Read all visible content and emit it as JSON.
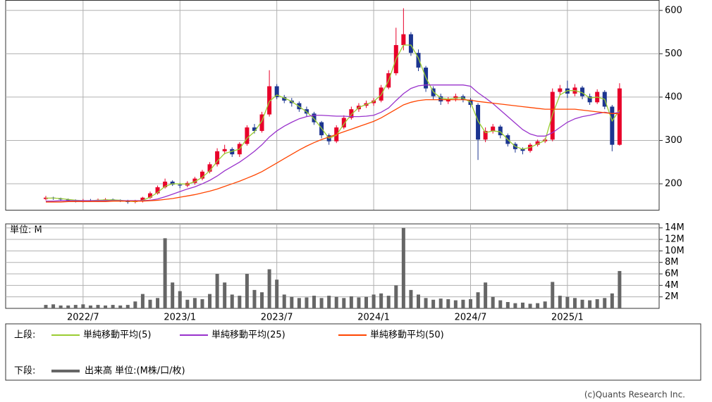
{
  "chart_data": [
    {
      "type": "candlestick",
      "categories": [
        null,
        null,
        null,
        null,
        null,
        "2022/7",
        null,
        null,
        null,
        null,
        null,
        null,
        null,
        null,
        null,
        null,
        null,
        null,
        "2023/1",
        null,
        null,
        null,
        null,
        null,
        null,
        null,
        null,
        null,
        null,
        null,
        null,
        "2023/7",
        null,
        null,
        null,
        null,
        null,
        null,
        null,
        null,
        null,
        null,
        null,
        null,
        "2024/1",
        null,
        null,
        null,
        null,
        null,
        null,
        null,
        null,
        null,
        null,
        null,
        null,
        "2024/7",
        null,
        null,
        null,
        null,
        null,
        null,
        null,
        null,
        null,
        null,
        null,
        null,
        "2025/1",
        null,
        null,
        null,
        null,
        null,
        null,
        null
      ],
      "open": [
        165,
        168,
        166,
        164,
        162,
        160,
        162,
        161,
        163,
        164,
        162,
        161,
        158,
        160,
        168,
        178,
        192,
        205,
        198,
        196,
        202,
        212,
        228,
        245,
        275,
        280,
        268,
        292,
        330,
        322,
        360,
        425,
        400,
        392,
        386,
        372,
        362,
        342,
        312,
        298,
        330,
        352,
        372,
        380,
        386,
        392,
        422,
        455,
        520,
        545,
        502,
        468,
        420,
        402,
        390,
        396,
        402,
        394,
        382,
        302,
        322,
        332,
        312,
        292,
        280,
        276,
        290,
        298,
        302,
        412,
        420,
        408,
        422,
        402,
        388,
        412,
        378,
        290
      ],
      "high": [
        172,
        170,
        168,
        166,
        164,
        165,
        165,
        166,
        167,
        166,
        164,
        163,
        163,
        170,
        182,
        196,
        212,
        208,
        202,
        206,
        216,
        232,
        250,
        282,
        290,
        284,
        296,
        335,
        338,
        366,
        462,
        430,
        405,
        398,
        390,
        378,
        366,
        345,
        316,
        335,
        358,
        378,
        386,
        392,
        398,
        428,
        462,
        560,
        605,
        550,
        510,
        472,
        425,
        408,
        400,
        408,
        406,
        398,
        386,
        330,
        338,
        336,
        316,
        296,
        284,
        294,
        302,
        306,
        420,
        428,
        438,
        430,
        426,
        408,
        418,
        416,
        382,
        432
      ],
      "low": [
        162,
        163,
        161,
        159,
        157,
        157,
        158,
        159,
        160,
        159,
        158,
        154,
        155,
        157,
        165,
        175,
        189,
        195,
        190,
        192,
        198,
        208,
        224,
        240,
        268,
        262,
        262,
        288,
        316,
        318,
        355,
        395,
        386,
        378,
        366,
        355,
        336,
        305,
        290,
        294,
        326,
        348,
        366,
        375,
        380,
        388,
        418,
        450,
        508,
        495,
        460,
        412,
        395,
        382,
        384,
        390,
        388,
        376,
        255,
        296,
        316,
        305,
        286,
        272,
        268,
        272,
        286,
        294,
        298,
        405,
        398,
        402,
        395,
        382,
        384,
        372,
        275,
        288
      ],
      "close": [
        168,
        166,
        164,
        162,
        160,
        162,
        161,
        163,
        164,
        162,
        161,
        158,
        160,
        168,
        178,
        192,
        205,
        198,
        196,
        202,
        212,
        228,
        245,
        275,
        280,
        268,
        292,
        330,
        322,
        360,
        425,
        400,
        392,
        386,
        372,
        362,
        342,
        312,
        298,
        330,
        352,
        372,
        380,
        386,
        392,
        422,
        455,
        520,
        545,
        502,
        468,
        420,
        402,
        390,
        396,
        402,
        394,
        382,
        302,
        322,
        332,
        312,
        292,
        280,
        276,
        290,
        298,
        302,
        412,
        420,
        408,
        422,
        402,
        388,
        412,
        378,
        290,
        420
      ],
      "up_color": "#e8002a",
      "down_color": "#1c3590",
      "legend_label": "上段:",
      "series": [
        {
          "name": "単純移動平均(5)",
          "color": "#9acd32",
          "values": [
            167,
            167,
            166,
            164,
            162,
            161,
            161,
            162,
            163,
            163,
            162,
            160,
            159,
            162,
            169,
            180,
            194,
            200,
            200,
            199,
            205,
            215,
            230,
            252,
            270,
            275,
            280,
            305,
            320,
            345,
            390,
            405,
            398,
            390,
            378,
            366,
            350,
            328,
            305,
            312,
            338,
            360,
            376,
            383,
            390,
            405,
            438,
            488,
            520,
            520,
            490,
            445,
            412,
            398,
            395,
            398,
            398,
            388,
            345,
            318,
            322,
            320,
            302,
            286,
            280,
            284,
            292,
            300,
            360,
            405,
            415,
            415,
            410,
            398,
            400,
            395,
            345,
            370
          ]
        },
        {
          "name": "単純移動平均(25)",
          "color": "#9932cc",
          "values": [
            160,
            160,
            161,
            161,
            161,
            161,
            161,
            161,
            161,
            161,
            161,
            161,
            161,
            161,
            162,
            165,
            170,
            176,
            182,
            188,
            193,
            200,
            208,
            218,
            230,
            240,
            250,
            262,
            275,
            290,
            308,
            322,
            333,
            342,
            350,
            355,
            358,
            358,
            357,
            356,
            356,
            355,
            355,
            356,
            358,
            365,
            375,
            392,
            408,
            420,
            426,
            428,
            428,
            428,
            428,
            428,
            428,
            425,
            410,
            398,
            385,
            370,
            355,
            340,
            325,
            315,
            310,
            310,
            318,
            330,
            342,
            350,
            355,
            358,
            362,
            365,
            362,
            365
          ]
        },
        {
          "name": "単純移動平均(50)",
          "color": "#ff4500",
          "values": [
            158,
            158,
            158,
            159,
            159,
            159,
            159,
            159,
            159,
            160,
            160,
            160,
            160,
            160,
            161,
            162,
            164,
            166,
            169,
            172,
            175,
            179,
            183,
            188,
            194,
            200,
            206,
            213,
            220,
            228,
            238,
            248,
            258,
            268,
            278,
            287,
            295,
            302,
            308,
            314,
            320,
            326,
            332,
            338,
            344,
            352,
            362,
            372,
            382,
            388,
            392,
            394,
            394,
            394,
            394,
            394,
            394,
            393,
            390,
            388,
            386,
            384,
            382,
            380,
            378,
            376,
            374,
            372,
            372,
            372,
            372,
            372,
            370,
            368,
            366,
            364,
            362,
            362
          ]
        }
      ],
      "ylim": [
        140,
        624
      ],
      "yticks": [
        200,
        300,
        400,
        500,
        600
      ],
      "grid": true
    },
    {
      "type": "bar",
      "unit_label": "単位: M",
      "legend_label": "下段:",
      "name": "出来高 単位:(M株/口/枚)",
      "color": "#666666",
      "values": [
        0.6,
        0.7,
        0.5,
        0.5,
        0.6,
        0.7,
        0.5,
        0.6,
        0.5,
        0.6,
        0.5,
        0.6,
        1.2,
        2.5,
        1.5,
        1.8,
        12.2,
        4.5,
        3.0,
        1.5,
        1.8,
        1.6,
        2.5,
        6.0,
        4.5,
        2.4,
        2.2,
        6.0,
        3.2,
        2.8,
        6.8,
        5.0,
        2.4,
        2.0,
        1.8,
        1.9,
        2.2,
        1.8,
        2.2,
        2.0,
        1.8,
        2.1,
        1.9,
        2.0,
        2.4,
        2.6,
        2.2,
        4.0,
        14.0,
        3.2,
        2.4,
        1.8,
        1.5,
        1.7,
        1.6,
        1.4,
        1.5,
        1.6,
        2.8,
        4.5,
        2.0,
        1.4,
        1.1,
        0.9,
        1.0,
        0.8,
        0.9,
        1.2,
        4.6,
        2.2,
        2.0,
        1.8,
        1.5,
        1.4,
        1.6,
        1.8,
        2.6,
        6.5
      ],
      "ylim": [
        0,
        14.7
      ],
      "yticks": [
        {
          "value": 2,
          "label": "2M"
        },
        {
          "value": 4,
          "label": "4M"
        },
        {
          "value": 6,
          "label": "6M"
        },
        {
          "value": 8,
          "label": "8M"
        },
        {
          "value": 10,
          "label": "10M"
        },
        {
          "value": 12,
          "label": "12M"
        },
        {
          "value": 14,
          "label": "14M"
        }
      ],
      "grid": true
    }
  ],
  "copyright": "(c)Quants Research Inc."
}
